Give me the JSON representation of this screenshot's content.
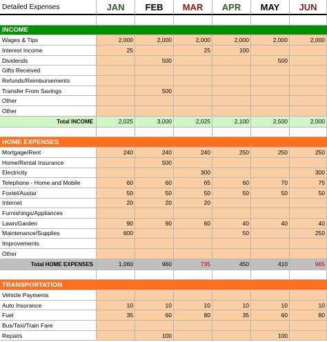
{
  "header": {
    "title": "Detailed Expenses",
    "months": [
      {
        "label": "JAN",
        "color": "#2f5f1f"
      },
      {
        "label": "FEB",
        "color": "#000000"
      },
      {
        "label": "MAR",
        "color": "#8b1a1a"
      },
      {
        "label": "APR",
        "color": "#2f5f1f"
      },
      {
        "label": "MAY",
        "color": "#000000"
      },
      {
        "label": "JUN",
        "color": "#8b1a1a"
      }
    ]
  },
  "sections": {
    "income": {
      "title": "INCOME",
      "rows": [
        {
          "label": "Wages & Tips",
          "values": [
            "2,000",
            "2,000",
            "2,000",
            "2,000",
            "2,000",
            "2,000"
          ]
        },
        {
          "label": "Interest Income",
          "values": [
            "25",
            "",
            "25",
            "100",
            "",
            ""
          ]
        },
        {
          "label": "Dividends",
          "values": [
            "",
            "500",
            "",
            "",
            "500",
            ""
          ]
        },
        {
          "label": "Gifts Received",
          "values": [
            "",
            "",
            "",
            "",
            "",
            ""
          ]
        },
        {
          "label": "Refunds/Reimbursements",
          "values": [
            "",
            "",
            "",
            "",
            "",
            ""
          ]
        },
        {
          "label": "Transfer From Savings",
          "values": [
            "",
            "500",
            "",
            "",
            "",
            ""
          ]
        },
        {
          "label": "Other",
          "values": [
            "",
            "",
            "",
            "",
            "",
            ""
          ]
        },
        {
          "label": "Other",
          "values": [
            "",
            "",
            "",
            "",
            "",
            ""
          ]
        }
      ],
      "total": {
        "label": "Total INCOME",
        "values": [
          "2,025",
          "3,000",
          "2,025",
          "2,100",
          "2,500",
          "2,000"
        ]
      }
    },
    "home": {
      "title": "HOME EXPENSES",
      "rows": [
        {
          "label": "Mortgage/Rent",
          "values": [
            "240",
            "240",
            "240",
            "250",
            "250",
            "250"
          ]
        },
        {
          "label": "Home/Rental Insurance",
          "values": [
            "",
            "500",
            "",
            "",
            "",
            ""
          ]
        },
        {
          "label": "Electricity",
          "values": [
            "",
            "",
            "300",
            "",
            "",
            "300"
          ]
        },
        {
          "label": "Telephone - Home and Mobile",
          "values": [
            "60",
            "60",
            "65",
            "60",
            "70",
            "75"
          ]
        },
        {
          "label": "Foxtel/Austar",
          "values": [
            "50",
            "50",
            "50",
            "50",
            "50",
            "50"
          ]
        },
        {
          "label": "Internet",
          "values": [
            "20",
            "20",
            "20",
            "",
            "",
            ""
          ]
        },
        {
          "label": "Furnishings/Appliances",
          "values": [
            "",
            "",
            "",
            "",
            "",
            ""
          ]
        },
        {
          "label": "Lawn/Garden",
          "values": [
            "90",
            "90",
            "60",
            "40",
            "40",
            "40"
          ]
        },
        {
          "label": "Maintenance/Supplies",
          "values": [
            "600",
            "",
            "",
            "50",
            "",
            "250"
          ]
        },
        {
          "label": "Improvements",
          "values": [
            "",
            "",
            "",
            "",
            "",
            ""
          ]
        },
        {
          "label": "Other",
          "values": [
            "",
            "",
            "",
            "",
            "",
            ""
          ]
        }
      ],
      "total": {
        "label": "Total HOME EXPENSES",
        "values": [
          "1,060",
          "960",
          "735",
          "450",
          "410",
          "965"
        ],
        "value_colors": [
          "#000000",
          "#000000",
          "#c00000",
          "#000000",
          "#000000",
          "#c00000"
        ]
      }
    },
    "transport": {
      "title": "TRANSPORTATION",
      "rows": [
        {
          "label": "Vehicle Payments",
          "values": [
            "",
            "",
            "",
            "",
            "",
            ""
          ]
        },
        {
          "label": "Auto Insurance",
          "values": [
            "10",
            "10",
            "10",
            "10",
            "10",
            "10"
          ]
        },
        {
          "label": "Fuel",
          "values": [
            "35",
            "60",
            "80",
            "35",
            "60",
            "80"
          ]
        },
        {
          "label": "Bus/Taxi/Train Fare",
          "values": [
            "",
            "",
            "",
            "",
            "",
            ""
          ]
        },
        {
          "label": "Repairs",
          "values": [
            "",
            "100",
            "",
            "",
            "100",
            ""
          ]
        }
      ]
    }
  },
  "colors": {
    "income_bar": "#009000",
    "section_bar": "#ff6f1c",
    "data_cell": "#fbcfa3",
    "income_total": "#d2f6c8",
    "home_total": "#bfbfbf"
  }
}
